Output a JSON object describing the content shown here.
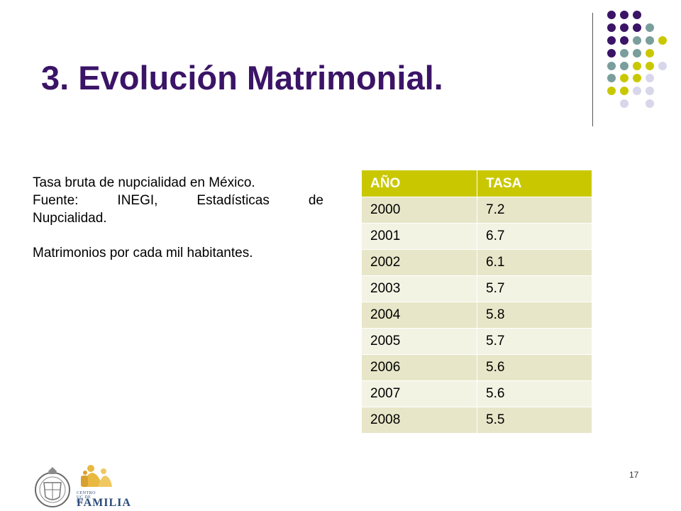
{
  "slide": {
    "title": "3. Evolución Matrimonial.",
    "page_number": "17"
  },
  "description": {
    "line1": "Tasa bruta de nupcialidad en México.",
    "line2": "Fuente: INEGI, Estadísticas de",
    "line3": "Nupcialidad.",
    "line4": "Matrimonios por cada mil habitantes."
  },
  "table": {
    "headers": [
      "AÑO",
      "TASA"
    ],
    "rows": [
      [
        "2000",
        "7.2"
      ],
      [
        "2001",
        "6.7"
      ],
      [
        "2002",
        "6.1"
      ],
      [
        "2003",
        "5.7"
      ],
      [
        "2004",
        "5.8"
      ],
      [
        "2005",
        "5.7"
      ],
      [
        "2006",
        "5.6"
      ],
      [
        "2007",
        "5.6"
      ],
      [
        "2008",
        "5.5"
      ]
    ]
  },
  "logo": {
    "small_text": "CENTRO UC DE LA",
    "big_text": "FAMILIA"
  },
  "colors": {
    "title": "#3b1467",
    "header_bg": "#c9c800",
    "row_odd": "#e7e6c8",
    "row_even": "#f3f3e4",
    "dot_purple": "#3b1467",
    "dot_teal": "#7a9e9c",
    "dot_olive": "#c9c800",
    "dot_lavender": "#d8d6ea"
  }
}
